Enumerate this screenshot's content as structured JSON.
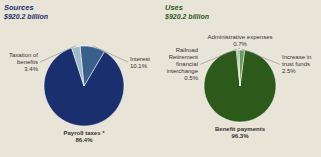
{
  "chart_data": [
    {
      "type": "pie",
      "title": "Sources",
      "subtitle": "$920.2 billion",
      "categories": [
        "Payroll taxes *",
        "Interest",
        "Taxation of benefits"
      ],
      "values": [
        86.4,
        10.1,
        3.4
      ],
      "value_labels": [
        "86.4%",
        "10.1%",
        "3.4%"
      ],
      "data_labels": true,
      "colors": [
        "#1b2f6e",
        "#3a5f8a",
        "#a0b8cc"
      ]
    },
    {
      "type": "pie",
      "title": "Uses",
      "subtitle": "$920.2 billion",
      "categories": [
        "Benefit payments",
        "Increase in trust funds",
        "Administrative expenses",
        "Railroad Retirement financial interchange"
      ],
      "values": [
        96.3,
        2.5,
        0.7,
        0.5
      ],
      "value_labels": [
        "96.3%",
        "2.5%",
        "0.7%",
        "0.5%"
      ],
      "data_labels": true,
      "colors": [
        "#2d5a1b",
        "#6b9960",
        "#8db87f",
        "#4a7a3a"
      ]
    }
  ]
}
